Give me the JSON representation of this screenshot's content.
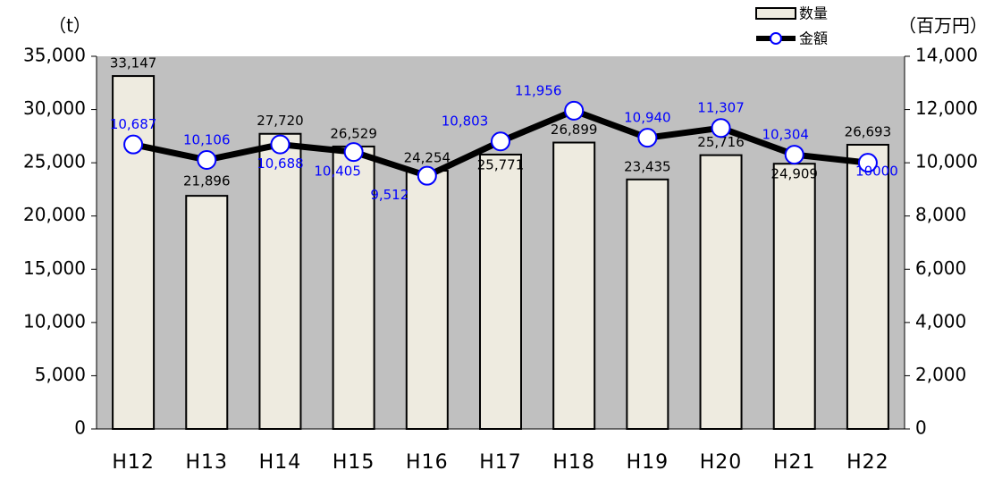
{
  "chart_data": {
    "type": "bar-line",
    "ylabel": "（t）",
    "y2label": "（百万円）",
    "categories": [
      "H12",
      "H13",
      "H14",
      "H15",
      "H16",
      "H17",
      "H18",
      "H19",
      "H20",
      "H21",
      "H22"
    ],
    "series": [
      {
        "name": "数量",
        "type": "bar",
        "color": "#eeebe0",
        "values": [
          33147,
          21896,
          27720,
          26529,
          24254,
          25771,
          26899,
          23435,
          25716,
          24909,
          26693
        ],
        "value_labels": [
          "33,147",
          "21,896",
          "27,720",
          "26,529",
          "24,254",
          "25,771",
          "26,899",
          "23,435",
          "25,716",
          "24,909",
          "26,693"
        ]
      },
      {
        "name": "金額",
        "type": "line",
        "axis": "y2",
        "color": "#000000",
        "marker_color": "#0000ff",
        "label_color": "#0000ff",
        "values": [
          10687,
          10106,
          10688,
          10405,
          9512,
          10803,
          11956,
          10940,
          11307,
          10304,
          10000
        ],
        "value_labels": [
          "10,687",
          "10,106",
          "10,688",
          "10,405",
          "9,512",
          "10,803",
          "11,956",
          "10,940",
          "11,307",
          "10,304",
          "10000"
        ]
      }
    ],
    "ylim": [
      0,
      35000
    ],
    "yticks": [
      0,
      {
        "value": 5000,
        "label": "5,000"
      },
      {
        "value": 10000,
        "label": "10,000"
      },
      {
        "value": 15000,
        "label": "15,000"
      },
      {
        "value": 20000,
        "label": "20,000"
      },
      {
        "value": 25000,
        "label": "25,000"
      },
      {
        "value": 30000,
        "label": "30,000"
      },
      {
        "value": 35000,
        "label": "35,000"
      }
    ],
    "y2lim": [
      0,
      14000
    ],
    "y2ticks": [
      0,
      {
        "value": 2000,
        "label": "2,000"
      },
      {
        "value": 4000,
        "label": "4,000"
      },
      {
        "value": 6000,
        "label": "6,000"
      },
      {
        "value": 8000,
        "label": "8,000"
      },
      {
        "value": 10000,
        "label": "10,000"
      },
      {
        "value": 12000,
        "label": "12,000"
      },
      {
        "value": 14000,
        "label": "14,000"
      }
    ],
    "plot_background": "#c0c0c0"
  }
}
